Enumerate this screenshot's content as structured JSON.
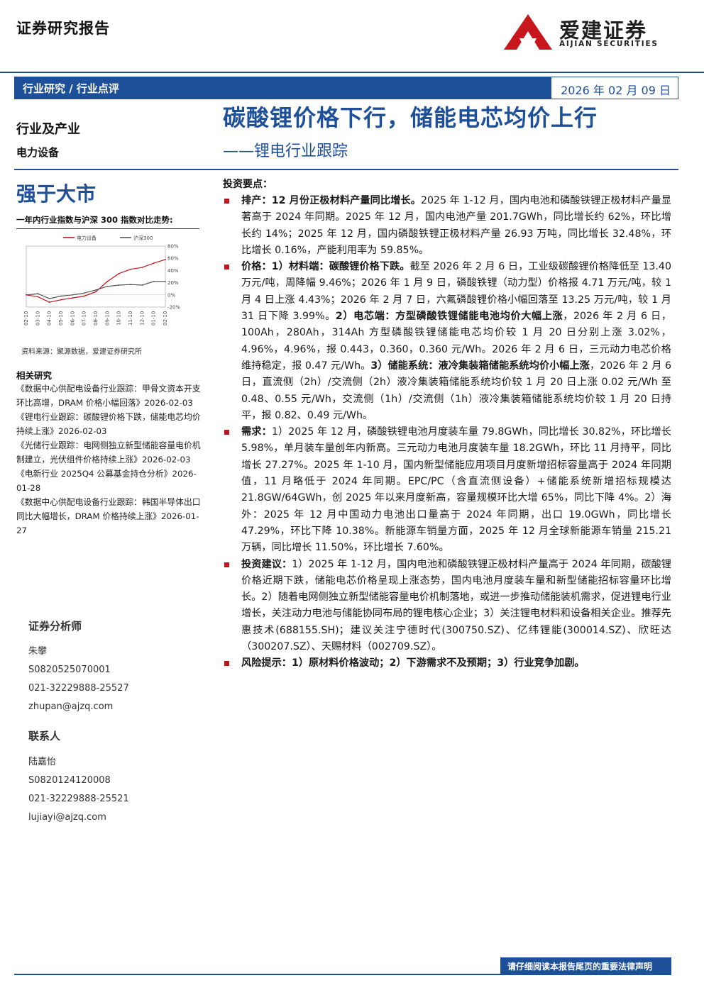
{
  "header": {
    "report_type": "证券研究报告",
    "brand_cn": "爱建证券",
    "brand_en": "AIJIAN SECURITIES",
    "brand_color": "#c8161d"
  },
  "nav": {
    "category": "行业研究 / 行业点评",
    "date": "2026 年 02 月 09 日",
    "color": "#1e4f99"
  },
  "left": {
    "industry": "行业及产业",
    "sector": "电力设备",
    "rating": "强于大市",
    "chart_caption": "一年内行业指数与沪深 300 指数对比走势:",
    "chart_source": "资料来源：聚源数据，爱建证券研究所",
    "related_title": "相关研究",
    "related": [
      "《数据中心供配电设备行业跟踪：甲骨文资本开支环比高增，DRAM 价格小幅回落》2026-02-03",
      "《锂电行业跟踪：碳酸锂价格下跌，储能电芯均价持续上涨》2026-02-03",
      "《光储行业跟踪：电网侧独立新型储能容量电价机制建立，光伏组件价格持续上涨》2026-02-03",
      "《电新行业 2025Q4 公募基金持仓分析》2026-01-28",
      "《数据中心供配电设备行业跟踪：韩国半导体出口同比大幅增长，DRAM 价格持续上涨》2026-01-27"
    ],
    "analyst_title": "证券分析师",
    "analyst": {
      "name": "朱攀",
      "license": "S0820525070001",
      "phone": "021-32229888-25527",
      "email": "zhupan@ajzq.com"
    },
    "contact_title": "联系人",
    "contact": {
      "name": "陆嘉怡",
      "license": "S0820124120008",
      "phone": "021-32229888-25521",
      "email": "lujiayi@ajzq.com"
    }
  },
  "title": {
    "main": "碳酸锂价格下行，储能电芯均价上行",
    "sub": "——锂电行业跟踪"
  },
  "key_points_title": "投资要点：",
  "paragraphs": [
    {
      "lead": "排产：12 月份正极材料产量同比增长。",
      "body": "2025 年 1-12 月，国内电池和磷酸铁锂正极材料产量显著高于 2024 年同期。2025 年 12 月，国内电池产量 201.7GWh，同比增长约 62%，环比增长约 14%；2025 年 12 月，国内磷酸铁锂正极材料产量 26.93 万吨，同比增长 32.48%，环比增长 0.16%，产能利用率为 59.85%。"
    },
    {
      "lead": "价格：1）材料端：碳酸锂价格下跌。",
      "body": "截至 2026 年 2 月 6 日，工业级碳酸锂价格降低至 13.40 万元/吨，周降幅 9.46%；2026 年 1 月 9 日，磷酸铁锂（动力型）价格报 4.71 万元/吨，较 1 月 4 日上涨 4.43%；2026 年 2 月 7 日，六氟磷酸锂价格小幅回落至 13.25 万元/吨，较 1 月 31 日下降 3.99%。",
      "lead2": "2）电芯端：方型磷酸铁锂储能电池均价大幅上涨",
      "body2": "，2026 年 2 月 6 日，100Ah，280Ah，314Ah 方型磷酸铁锂储能电芯均价较 1 月 20 日分别上涨 3.02%，4.96%，4.96%，报 0.443，0.360，0.360 元/Wh。2026 年 2 月 6 日，三元动力电芯价格维持稳定，报 0.47 元/Wh。",
      "lead3": "3）储能系统：液冷集装箱储能系统均价小幅上涨",
      "body3": "，2026 年 2 月 6 日，直流侧（2h）/交流侧（2h）液冷集装箱储能系统均价较 1 月 20 日上涨 0.02 元/Wh 至 0.48、0.55 元/Wh，交流侧（1h）/交流侧（1h）液冷集装箱储能系统均价较 1 月 20 日持平，报 0.82、0.49 元/Wh。"
    },
    {
      "lead": "需求：",
      "body": "1）2025 年 12 月，磷酸铁锂电池月度装车量 79.8GWh，同比增长 30.82%，环比增长 5.98%，单月装车量创年内新高。三元动力电池月度装车量 18.2GWh，环比 11 月持平，同比增长 27.27%。2025 年 1-10 月，国内新型储能应用项目月度新增招标容量高于 2024 年同期值，11 月略低于 2024 年同期。EPC/PC（含直流侧设备）+储能系统新增招标规模达 21.8GW/64GWh，创 2025 年以来月度新高，容量规模环比大增 65%，同比下降 4%。2）海外：2025 年 12 月中国动力电池出口量高于 2024 年同期，出口 19.0GWh，同比增长 47.29%，环比下降 10.38%。新能源车销量方面，2025 年 12 月全球新能源车销量 215.21 万辆，同比增长 11.50%，环比增长 7.60%。"
    },
    {
      "lead": "投资建议：",
      "body": "1）2025 年 1-12 月，国内电池和磷酸铁锂正极材料产量高于 2024 年同期，碳酸锂价格近期下跌，储能电芯价格呈现上涨态势，国内电池月度装车量和新型储能招标容量环比增长。2）随着电网侧独立新型储能容量电价机制落地，或进一步推动储能装机需求，促进锂电行业增长，关注动力电池与储能协同布局的锂电核心企业；3）关注锂电材料和设备相关企业。推荐先惠技术(688155.SH)；建议关注宁德时代(300750.SZ)、亿纬锂能(300014.SZ)、欣旺达（300207.SZ）、天赐材料（002709.SZ）。"
    },
    {
      "lead": "风险提示：1）原材料价格波动；2）下游需求不及预期；3）行业竞争加剧。",
      "body": ""
    }
  ],
  "footer": {
    "disclaimer": "请仔细阅读本报告尾页的重要法律声明"
  },
  "chart_data": {
    "type": "line",
    "x": [
      "02-10",
      "03-10",
      "04-10",
      "05-10",
      "06-10",
      "07-10",
      "08-10",
      "09-10",
      "10-10",
      "11-10",
      "12-10",
      "01-10",
      "02-10"
    ],
    "series": [
      {
        "name": "电力设备",
        "color": "#c0161e",
        "values": [
          0,
          -3,
          -12,
          -8,
          -5,
          -2,
          5,
          22,
          35,
          42,
          45,
          52,
          58
        ]
      },
      {
        "name": "沪深300",
        "color": "#555555",
        "values": [
          0,
          2,
          -6,
          -2,
          0,
          3,
          8,
          14,
          16,
          17,
          16,
          22,
          22
        ]
      }
    ],
    "yticks": [
      "80%",
      "60%",
      "40%",
      "20%",
      "0%",
      "-20%"
    ],
    "ylim": [
      -20,
      80
    ]
  }
}
